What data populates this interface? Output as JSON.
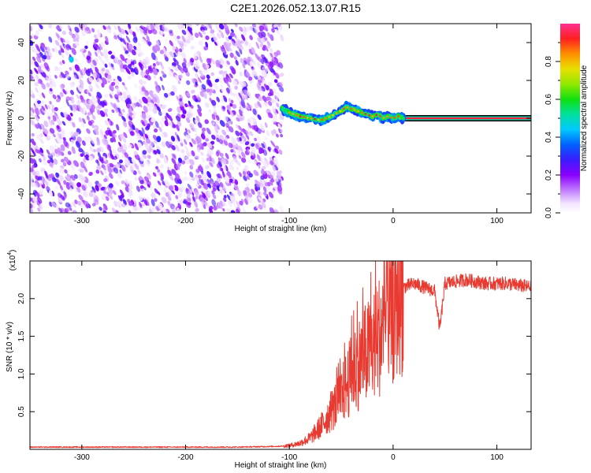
{
  "title": "C2E1.2026.052.13.07.R15",
  "chart_data": [
    {
      "type": "heatmap",
      "name": "spectrogram",
      "xlabel": "Height of straight line (km)",
      "ylabel": "Frequency (Hz)",
      "xlim": [
        -350,
        133
      ],
      "ylim": [
        -50,
        50
      ],
      "xticks": [
        -300,
        -200,
        -100,
        0,
        100
      ],
      "yticks": [
        -40,
        -20,
        0,
        20,
        40
      ],
      "colorbar": {
        "label": "Normalized spectral amplitude",
        "range": [
          0,
          1
        ],
        "ticks": [
          0.0,
          0.2,
          0.4,
          0.6,
          0.8
        ],
        "tick_labels": [
          "0.0",
          "0.2",
          "0.4",
          "0.6",
          "0.8"
        ]
      },
      "noise_region_x": [
        -350,
        -107
      ],
      "signal_track": {
        "x": [
          -107,
          -100,
          -90,
          -80,
          -70,
          -60,
          -50,
          -45,
          -40,
          -35,
          -30,
          -25,
          -20,
          -15,
          -10,
          -5,
          0,
          5,
          10,
          20,
          40,
          60,
          80,
          100,
          133
        ],
        "frequency": [
          5,
          3,
          1,
          0,
          -1,
          1,
          4,
          6,
          5,
          4,
          3,
          2,
          1,
          2,
          0,
          1,
          0,
          1,
          0,
          0,
          0,
          0,
          0,
          0,
          0
        ]
      },
      "hotspots": [
        {
          "x": -310,
          "frequency": 31,
          "amplitude": 0.45
        },
        {
          "x": -226,
          "frequency": -11,
          "amplitude": 0.3
        }
      ]
    },
    {
      "type": "line",
      "name": "snr",
      "xlabel": "Height of straight line (km)",
      "ylabel": "SNR (10 * v/v)",
      "y_multiplier": "(x10",
      "y_multiplier_exp": "4",
      "xlim": [
        -350,
        133
      ],
      "ylim": [
        0,
        2.5
      ],
      "xticks": [
        -300,
        -200,
        -100,
        0,
        100
      ],
      "yticks": [
        0.5,
        1.0,
        1.5,
        2.0
      ],
      "ytick_labels": [
        "0.5",
        "1.0",
        "1.5",
        "2.0"
      ],
      "color": "#e83a30",
      "series": [
        {
          "name": "SNR",
          "x": [
            -350,
            -300,
            -250,
            -200,
            -150,
            -110,
            -100,
            -90,
            -80,
            -70,
            -60,
            -50,
            -40,
            -30,
            -20,
            -10,
            0,
            5,
            10,
            20,
            30,
            40,
            45,
            50,
            70,
            90,
            110,
            133
          ],
          "values": [
            0.03,
            0.03,
            0.03,
            0.03,
            0.03,
            0.04,
            0.05,
            0.08,
            0.15,
            0.3,
            0.5,
            0.7,
            1.0,
            1.2,
            1.35,
            1.6,
            1.85,
            2.1,
            2.15,
            2.2,
            2.15,
            2.1,
            1.6,
            2.2,
            2.25,
            2.2,
            2.2,
            2.15
          ]
        }
      ]
    }
  ]
}
